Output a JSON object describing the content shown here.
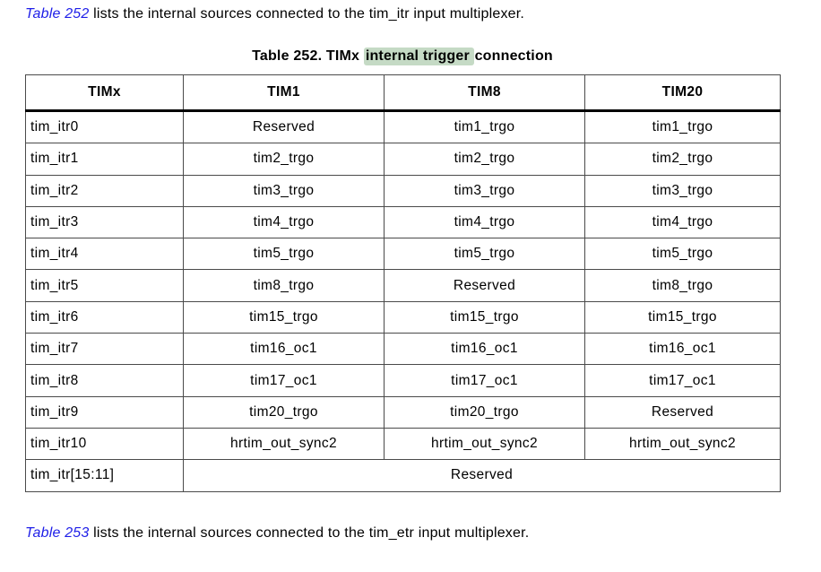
{
  "intro": {
    "link": "Table 252",
    "text": " lists the internal sources connected to the tim_itr input multiplexer."
  },
  "outro": {
    "link": "Table 253",
    "text": " lists the internal sources connected to the tim_etr input multiplexer."
  },
  "table": {
    "caption": {
      "prefix": "Table 252. TIMx ",
      "highlight": "internal trigger",
      "suffix": " connection"
    },
    "columns": [
      "TIMx",
      "TIM1",
      "TIM8",
      "TIM20"
    ],
    "rows": [
      [
        "tim_itr0",
        "Reserved",
        "tim1_trgo",
        "tim1_trgo"
      ],
      [
        "tim_itr1",
        "tim2_trgo",
        "tim2_trgo",
        "tim2_trgo"
      ],
      [
        "tim_itr2",
        "tim3_trgo",
        "tim3_trgo",
        "tim3_trgo"
      ],
      [
        "tim_itr3",
        "tim4_trgo",
        "tim4_trgo",
        "tim4_trgo"
      ],
      [
        "tim_itr4",
        "tim5_trgo",
        "tim5_trgo",
        "tim5_trgo"
      ],
      [
        "tim_itr5",
        "tim8_trgo",
        "Reserved",
        "tim8_trgo"
      ],
      [
        "tim_itr6",
        "tim15_trgo",
        "tim15_trgo",
        "tim15_trgo"
      ],
      [
        "tim_itr7",
        "tim16_oc1",
        "tim16_oc1",
        "tim16_oc1"
      ],
      [
        "tim_itr8",
        "tim17_oc1",
        "tim17_oc1",
        "tim17_oc1"
      ],
      [
        "tim_itr9",
        "tim20_trgo",
        "tim20_trgo",
        "Reserved"
      ],
      [
        "tim_itr10",
        "hrtim_out_sync2",
        "hrtim_out_sync2",
        "hrtim_out_sync2"
      ]
    ],
    "merged_row": {
      "label": "tim_itr[15:11]",
      "value": "Reserved",
      "colspan": 3
    }
  },
  "colors": {
    "link_blue": "#1f1fe8",
    "highlight_green": "#c5dac5",
    "border_gray": "#4a4a4a",
    "header_rule_black": "#000000"
  }
}
